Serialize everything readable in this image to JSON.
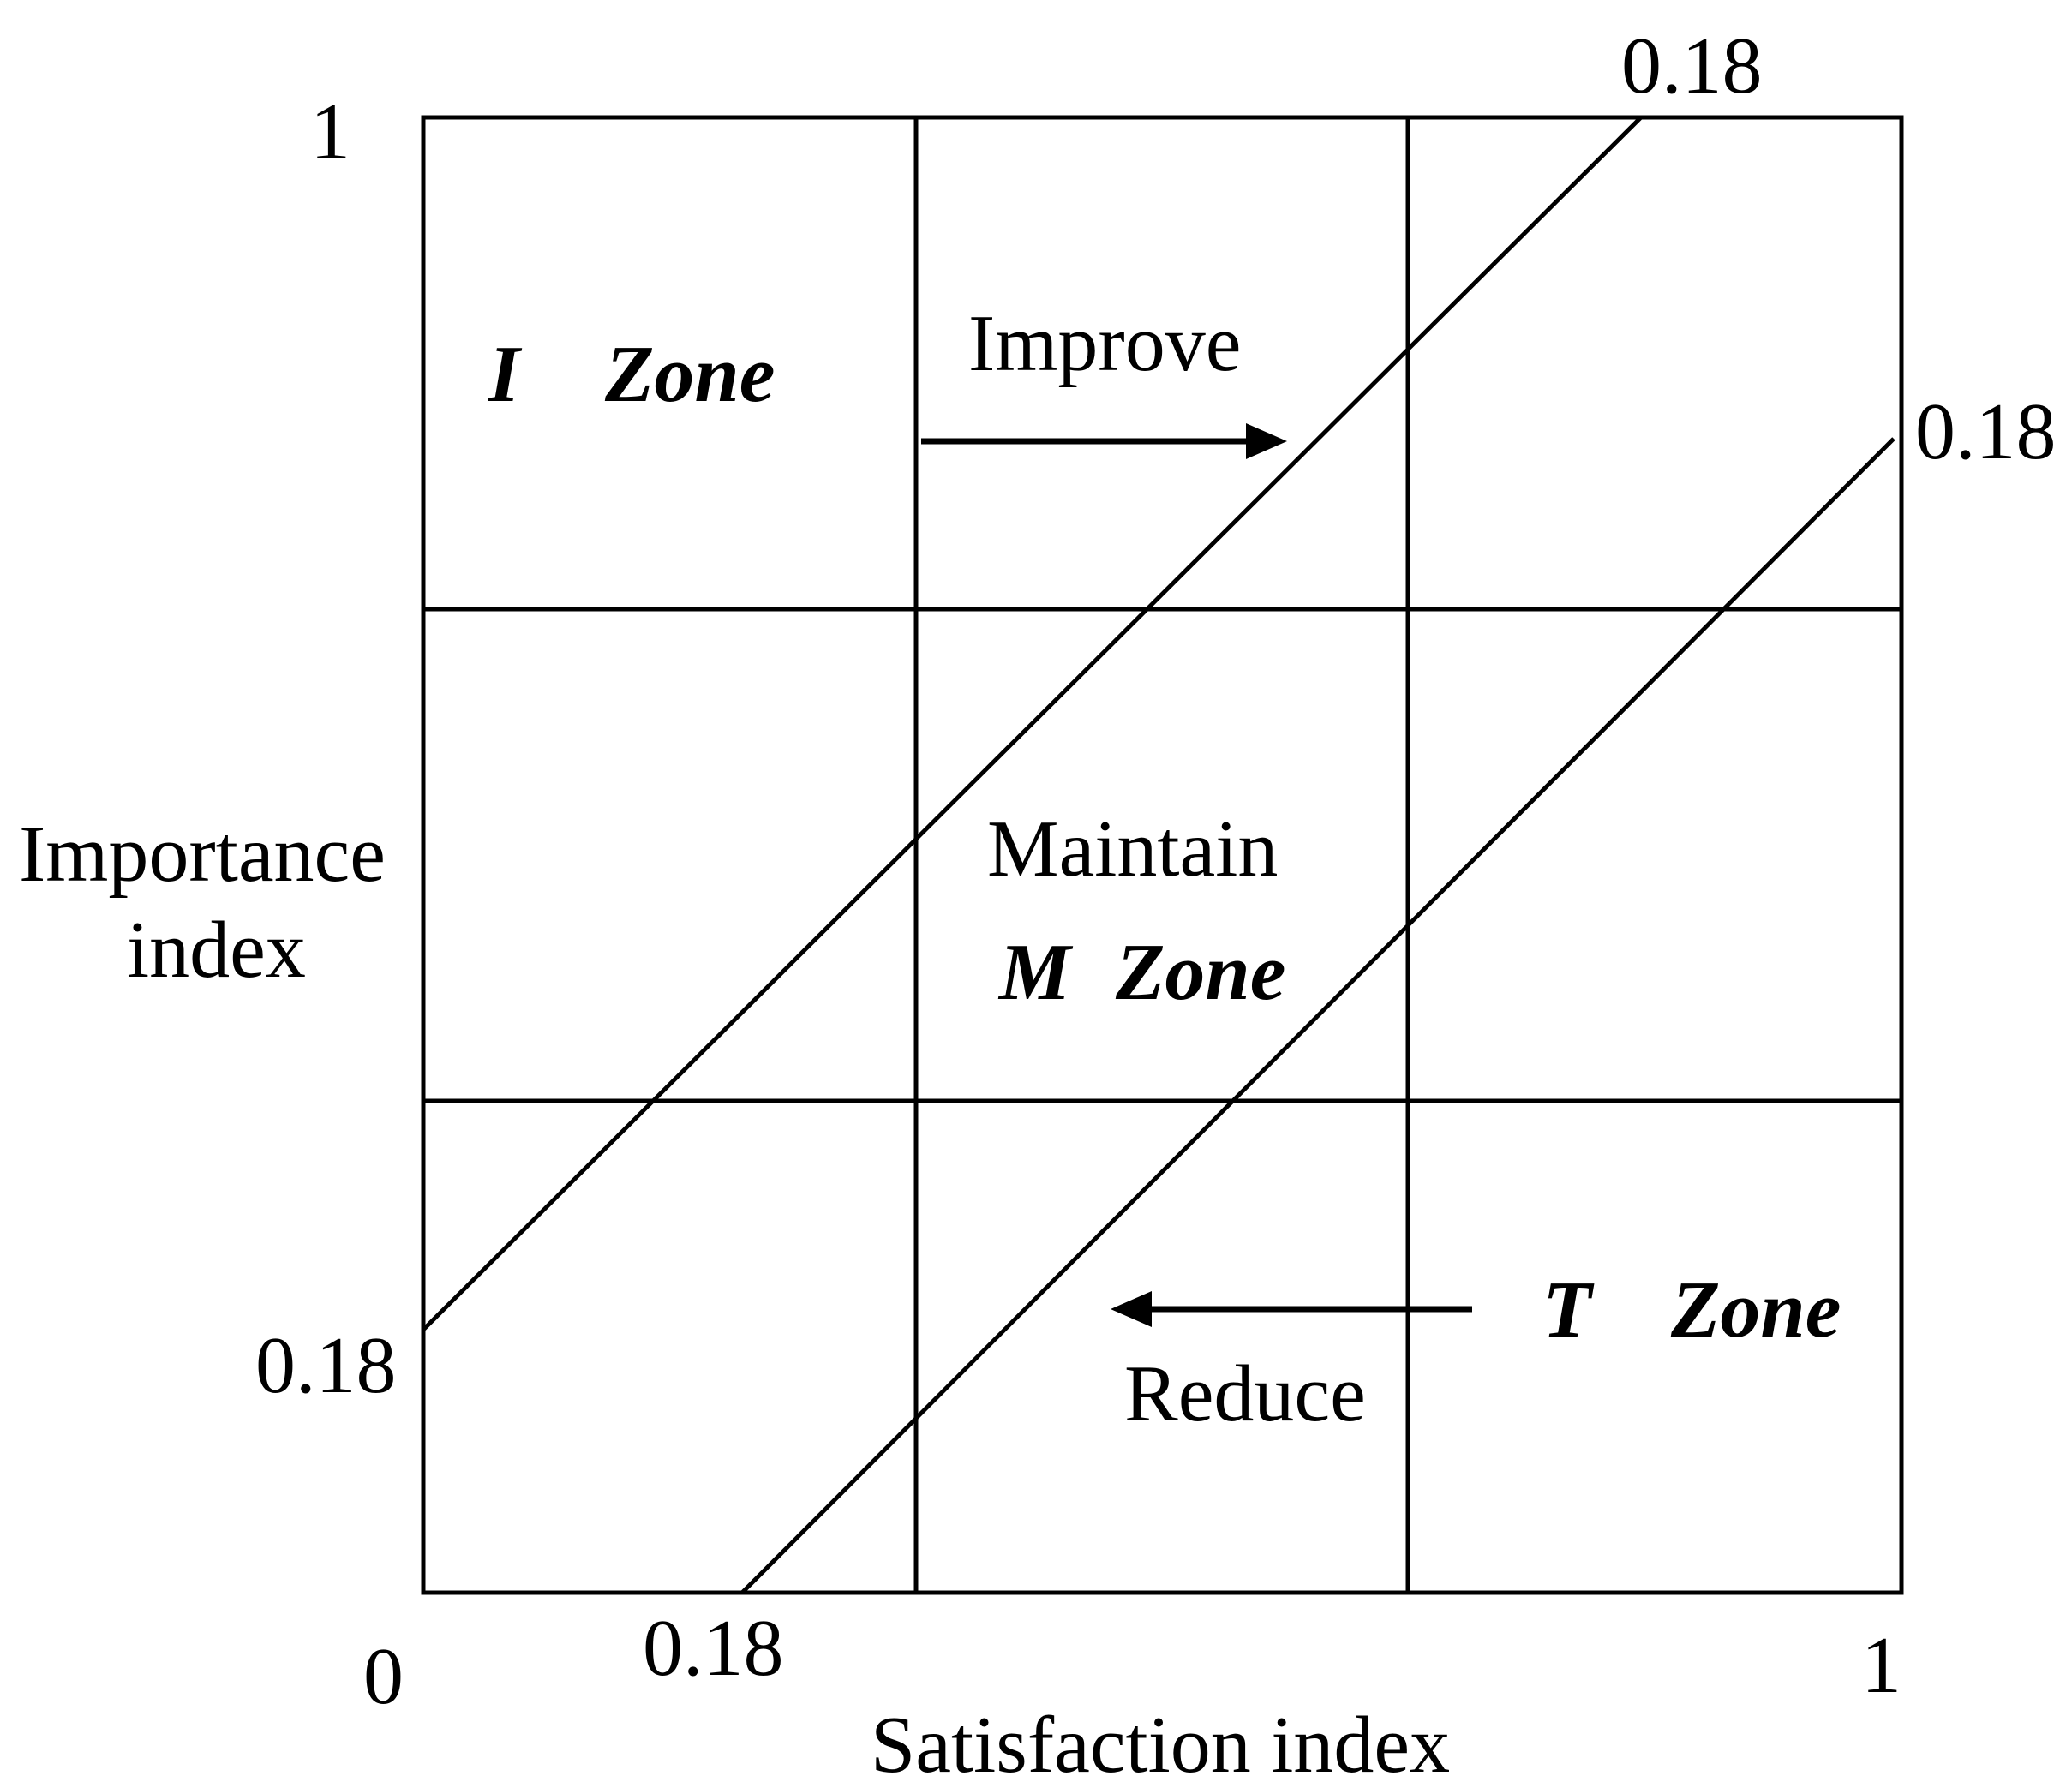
{
  "axes": {
    "x_label": "Satisfaction index",
    "y_label_line1": "Importance",
    "y_label_line2": "index",
    "origin": "0",
    "x_max": "1",
    "y_max": "1"
  },
  "threshold_labels": {
    "upper_top": "0.18",
    "lower_right": "0.18",
    "upper_left": "0.18",
    "lower_bottom": "0.18"
  },
  "zones": {
    "i_zone_letter": "I",
    "i_zone_word": "Zone",
    "m_zone_letter": "M",
    "m_zone_word": "Zone",
    "t_zone_letter": "T",
    "t_zone_word": "Zone"
  },
  "actions": {
    "improve": "Improve",
    "maintain": "Maintain",
    "reduce": "Reduce"
  },
  "style": {
    "line_color": "#000000",
    "background": "#ffffff"
  }
}
